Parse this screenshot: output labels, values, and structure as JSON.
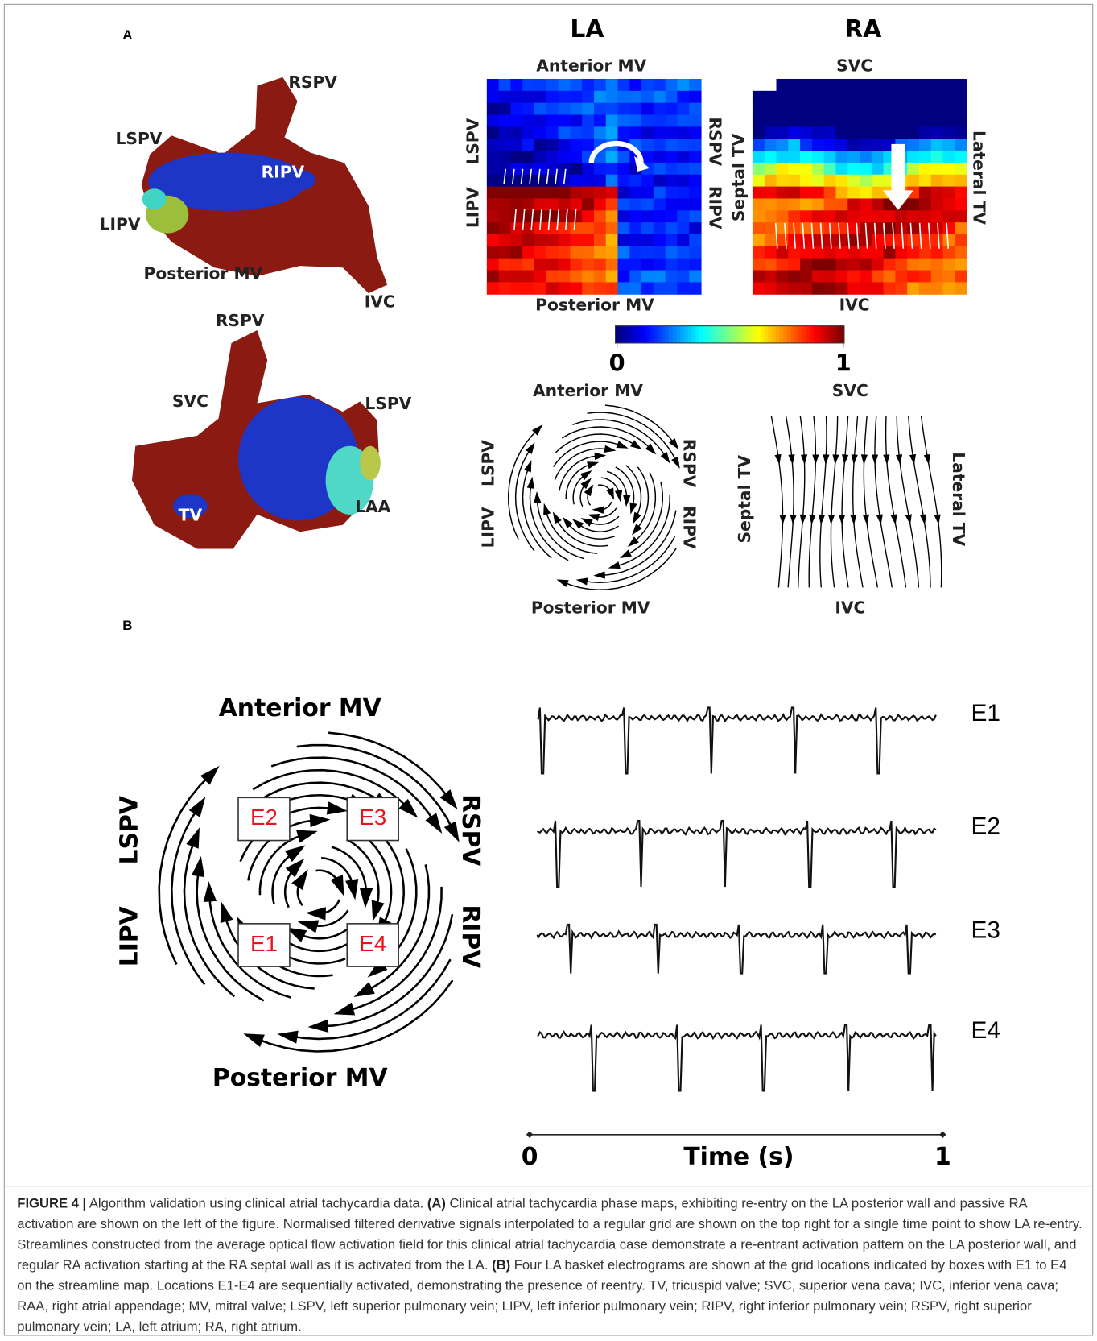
{
  "panel_a": {
    "label": "A",
    "la_3d": {
      "rspv": "RSPV",
      "lspv": "LSPV",
      "ripv": "RIPV",
      "lipv": "LIPV",
      "posterior_mv": "Posterior MV",
      "ivc": "IVC"
    },
    "ra_3d": {
      "rspv": "RSPV",
      "svc": "SVC",
      "lspv": "LSPV",
      "tv": "TV",
      "laa": "LAA"
    },
    "phase_map_la": {
      "title": "LA",
      "top": "Anterior MV",
      "bottom": "Posterior MV",
      "left_top": "LSPV",
      "left_bottom": "LIPV",
      "right_top": "RSPV",
      "right_bottom": "RIPV"
    },
    "phase_map_ra": {
      "title": "RA",
      "top": "SVC",
      "bottom": "IVC",
      "left": "Septal TV",
      "right": "Lateral TV"
    },
    "colorbar": {
      "ticks": [
        0,
        1
      ]
    },
    "streamline_la": {
      "top": "Anterior MV",
      "bottom": "Posterior MV",
      "left_top": "LSPV",
      "left_bottom": "LIPV",
      "right_top": "RSPV",
      "right_bottom": "RIPV"
    },
    "streamline_ra": {
      "top": "SVC",
      "bottom": "IVC",
      "left": "Septal TV",
      "right": "Lateral TV"
    }
  },
  "panel_b": {
    "label": "B",
    "streamline": {
      "top": "Anterior MV",
      "bottom": "Posterior MV",
      "left_top": "LSPV",
      "left_bottom": "LIPV",
      "right_top": "RSPV",
      "right_bottom": "RIPV",
      "boxes": {
        "e2": "E2",
        "e3": "E3",
        "e1": "E1",
        "e4": "E4"
      }
    },
    "electrograms": [
      "E1",
      "E2",
      "E3",
      "E4"
    ],
    "time_axis": {
      "label": "Time (s)",
      "ticks": [
        0,
        1
      ]
    }
  },
  "caption": {
    "figure_label": "FIGURE 4 |",
    "title": "Algorithm validation using clinical atrial tachycardia data.",
    "a_label": "(A)",
    "a_text": "Clinical atrial tachycardia phase maps, exhibiting re-entry on the LA posterior wall and passive RA activation are shown on the left of the figure. Normalised filtered derivative signals interpolated to a regular grid are shown on the top right for a single time point to show LA re-entry. Streamlines constructed from the average optical flow activation field for this clinical atrial tachycardia case demonstrate a re-entrant activation pattern on the LA posterior wall, and regular RA activation starting at the RA septal wall as it is activated from the LA.",
    "b_label": "(B)",
    "b_text": "Four LA basket electrograms are shown at the grid locations indicated by boxes with E1 to E4 on the streamline map. Locations E1-E4 are sequentially activated, demonstrating the presence of reentry. TV, tricuspid valve; SVC, superior vena cava; IVC, inferior vena cava; RAA, right atrial appendage; MV, mitral valve; LSPV, left superior pulmonary vein; LIPV, left inferior pulmonary vein; RIPV, right inferior pulmonary vein; RSPV, right superior pulmonary vein; LA, left atrium; RA, right atrium."
  }
}
